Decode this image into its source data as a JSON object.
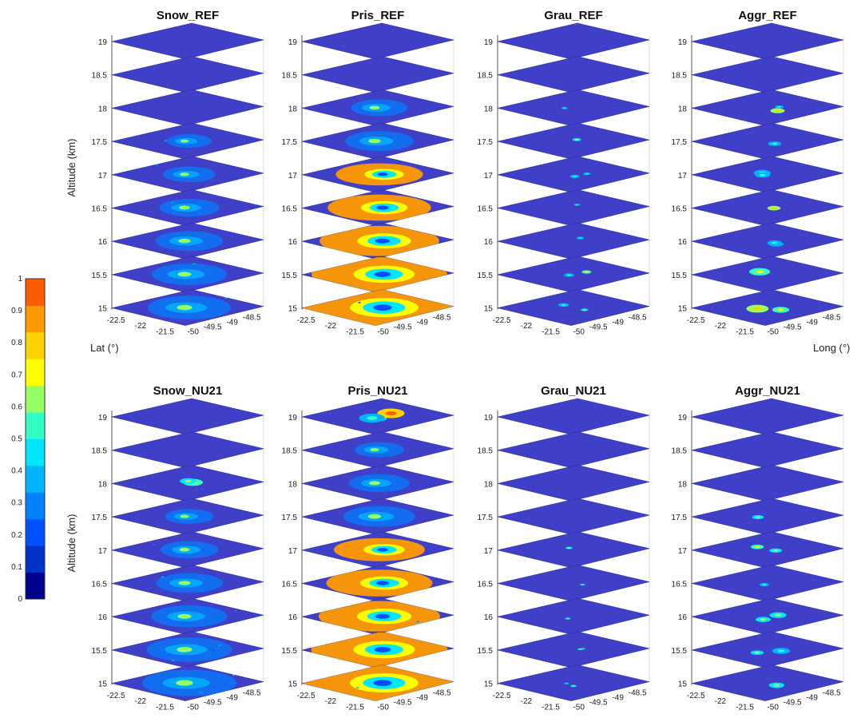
{
  "chart_data": {
    "type": "heatmap",
    "kind": "stacked 3-D horizontal slices (mixing-ratio fraction)",
    "colors": {
      "plane": "#3f3fc8",
      "colorbar": [
        "#00008f",
        "#0032c8",
        "#0050ff",
        "#0082ff",
        "#00b4ff",
        "#00e6ff",
        "#32ffc8",
        "#96ff64",
        "#ffff00",
        "#ffd200",
        "#ff9b00",
        "#ff5a00"
      ]
    },
    "panels": [
      {
        "title": "Snow_REF",
        "intensity": 0.45,
        "low_spread": 0.6,
        "high_spread": 0.05,
        "levels_active": 6,
        "clutter": 0.4
      },
      {
        "title": "Pris_REF",
        "intensity": 1.0,
        "low_spread": 1.0,
        "high_spread": 0.15,
        "levels_active": 7,
        "clutter": 0.1
      },
      {
        "title": "Grau_REF",
        "intensity": 0.35,
        "low_spread": 0.05,
        "high_spread": 0.02,
        "levels_active": 7,
        "clutter": 0.0
      },
      {
        "title": "Aggr_REF",
        "intensity": 0.55,
        "low_spread": 0.2,
        "high_spread": 0.03,
        "levels_active": 7,
        "clutter": 0.1
      },
      {
        "title": "Snow_NU21",
        "intensity": 0.5,
        "low_spread": 0.7,
        "high_spread": 0.05,
        "levels_active": 7,
        "clutter": 0.5
      },
      {
        "title": "Pris_NU21",
        "intensity": 1.0,
        "low_spread": 1.0,
        "high_spread": 0.2,
        "levels_active": 9,
        "clutter": 0.15
      },
      {
        "title": "Grau_NU21",
        "intensity": 0.3,
        "low_spread": 0.03,
        "high_spread": 0.0,
        "levels_active": 5,
        "clutter": 0.0
      },
      {
        "title": "Aggr_NU21",
        "intensity": 0.5,
        "low_spread": 0.15,
        "high_spread": 0.02,
        "levels_active": 6,
        "clutter": 0.0
      }
    ],
    "altitude_ticks": [
      "19",
      "18.5",
      "18",
      "17.5",
      "17",
      "16.5",
      "16",
      "15.5",
      "15"
    ],
    "zlabel": "Altitude (km)",
    "lat_ticks": [
      "-22.5",
      "-22",
      "-21.5"
    ],
    "lon_ticks": [
      "-50",
      "-49.5",
      "-49",
      "-48.5"
    ],
    "xlabel": "Lat (°)",
    "ylabel": "Long (°)",
    "colorbar_ticks": [
      "1",
      "0.9",
      "0.8",
      "0.7",
      "0.6",
      "0.5",
      "0.4",
      "0.3",
      "0.2",
      "0.1",
      "0"
    ],
    "colorbar_range": [
      0,
      1
    ]
  }
}
